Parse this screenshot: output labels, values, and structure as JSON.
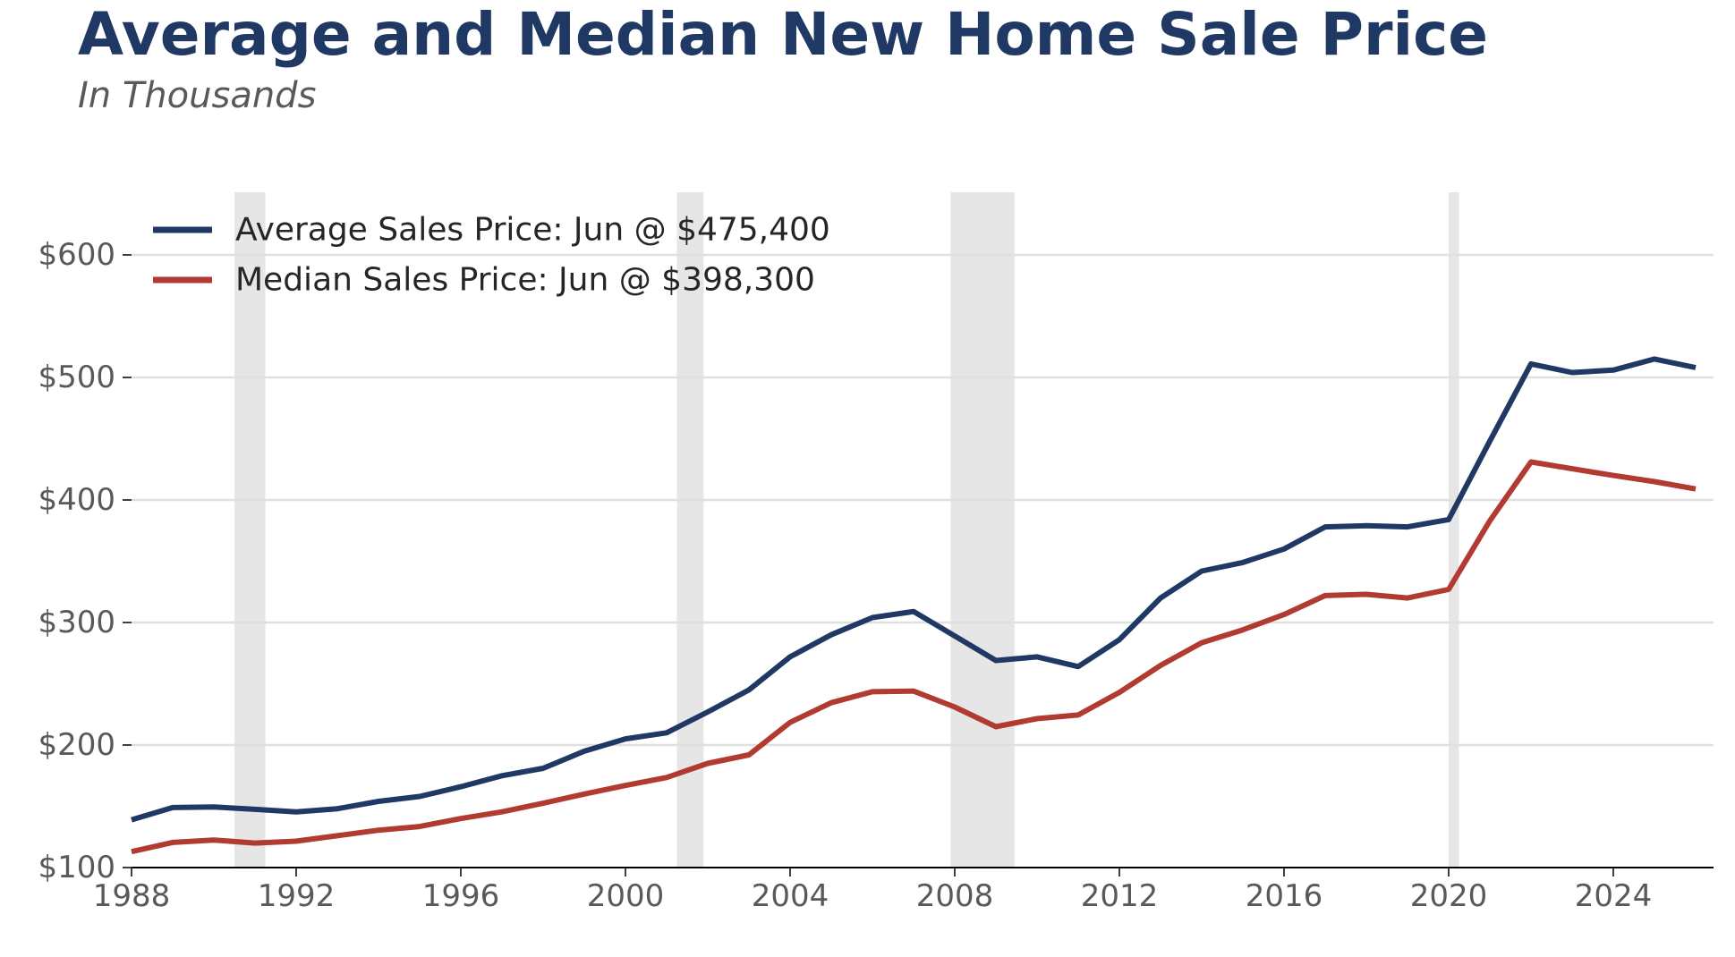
{
  "chart_data": {
    "type": "line",
    "title": "Average and Median New Home Sale Price",
    "subtitle": "In Thousands",
    "xlabel": "",
    "ylabel": "",
    "xlim": [
      1988,
      2026.5
    ],
    "ylim": [
      100,
      650
    ],
    "x_ticks": [
      1988,
      1992,
      1996,
      2000,
      2004,
      2008,
      2012,
      2016,
      2020,
      2024
    ],
    "y_ticks": [
      100,
      200,
      300,
      400,
      500,
      600
    ],
    "y_tick_labels": [
      "$100",
      "$200",
      "$300",
      "$400",
      "$500",
      "$600"
    ],
    "grid": "horizontal",
    "legend_position": "top-left",
    "recessions": [
      {
        "start": 1990.5,
        "end": 1991.25
      },
      {
        "start": 2001.25,
        "end": 2001.9
      },
      {
        "start": 2007.9,
        "end": 2009.45
      },
      {
        "start": 2020.0,
        "end": 2020.25
      }
    ],
    "x": [
      1988,
      1989,
      1990,
      1991,
      1992,
      1993,
      1994,
      1995,
      1996,
      1997,
      1998,
      1999,
      2000,
      2001,
      2002,
      2003,
      2004,
      2005,
      2006,
      2007,
      2008,
      2009,
      2010,
      2011,
      2012,
      2013,
      2014,
      2015,
      2016,
      2017,
      2018,
      2019,
      2020,
      2021,
      2022,
      2023,
      2024,
      2025,
      2026
    ],
    "series": [
      {
        "name": "Average Sales Price: Jun @ $475,400",
        "color": "#1f3864",
        "values": [
          139,
          149,
          149.5,
          147.5,
          145.5,
          148,
          154,
          158,
          166,
          175,
          181,
          195,
          205,
          210,
          227,
          245,
          272,
          290,
          304,
          309,
          289,
          269,
          272,
          264,
          286,
          320,
          342,
          349,
          360,
          378,
          379,
          378,
          384,
          448,
          511,
          504,
          506,
          515,
          508
        ]
      },
      {
        "name": "Median Sales Price: Jun @ $398,300",
        "color": "#b13a31",
        "values": [
          113,
          120.5,
          122.5,
          120,
          121.5,
          126,
          130.5,
          133.5,
          140,
          145.5,
          152.5,
          160,
          167,
          173.5,
          185,
          192,
          218.5,
          234.5,
          243.5,
          244,
          231,
          215,
          221.5,
          224.5,
          243,
          265,
          283.5,
          294,
          306.5,
          322,
          323,
          320,
          327,
          383,
          431,
          425.5,
          420,
          415,
          409
        ]
      }
    ]
  }
}
